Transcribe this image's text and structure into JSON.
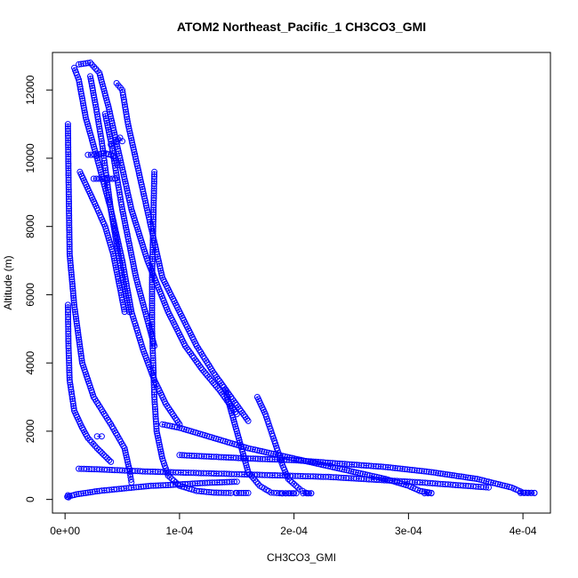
{
  "chart_data": {
    "type": "scatter",
    "title": "ATOM2 Northeast_Pacific_1 CH3CO3_GMI",
    "xlabel": "CH3CO3_GMI",
    "ylabel": "Altitude (m)",
    "xlim": [
      -1.1e-05,
      0.000424
    ],
    "ylim": [
      -400,
      13100
    ],
    "x_ticks": [
      0,
      0.0001,
      0.0002,
      0.0003,
      0.0004
    ],
    "x_tick_labels": [
      "0e+00",
      "1e-04",
      "2e-04",
      "3e-04",
      "4e-04"
    ],
    "y_ticks": [
      0,
      2000,
      4000,
      6000,
      8000,
      10000,
      12000
    ],
    "y_tick_labels": [
      "0",
      "2000",
      "4000",
      "6000",
      "8000",
      "10000",
      "12000"
    ],
    "marker": "open-circle",
    "connected": true,
    "line_style": "dashed",
    "colors": {
      "series": "#0000ff",
      "axes": "#000000",
      "background": "#ffffff"
    },
    "series": [
      {
        "x": [
          2.5e-06,
          3e-06,
          4e-06,
          8e-06,
          1.5e-05,
          2.5e-05,
          4e-05,
          5.2e-05,
          5.6e-05,
          5.8e-05
        ],
        "y": [
          11000,
          9500,
          7200,
          5700,
          4000,
          3000,
          2200,
          1500,
          900,
          500
        ]
      },
      {
        "x": [
          2.5e-06,
          3e-06,
          4e-06,
          8e-06,
          1.5e-05,
          2e-05,
          2.8e-05,
          3.4e-05,
          4e-05
        ],
        "y": [
          5700,
          4500,
          3500,
          2600,
          2100,
          1800,
          1500,
          1300,
          1100
        ]
      },
      {
        "x": [
          8e-06,
          1.2e-05,
          1.8e-05,
          2.8e-05,
          4e-05,
          5e-05,
          5.8e-05,
          6.8e-05,
          7.8e-05,
          8.8e-05,
          0.0001
        ],
        "y": [
          12650,
          12300,
          11200,
          10000,
          8500,
          7000,
          5500,
          4400,
          3500,
          2800,
          2200
        ]
      },
      {
        "x": [
          1.2e-05,
          2.2e-05,
          3e-05,
          3.8e-05,
          4.8e-05,
          5.8e-05,
          7.2e-05,
          9e-05,
          0.000105,
          0.00012,
          0.000135,
          0.00015
        ],
        "y": [
          12750,
          12800,
          12500,
          11500,
          10000,
          8500,
          7000,
          5500,
          4500,
          3800,
          3200,
          2500
        ]
      },
      {
        "x": [
          4.5e-05,
          5e-05,
          5.5e-05,
          6.5e-05,
          7.5e-05,
          8.5e-05,
          0.0001,
          0.000115,
          0.00013,
          0.000145,
          0.00016
        ],
        "y": [
          12200,
          12000,
          11000,
          9500,
          8000,
          6500,
          5500,
          4500,
          3700,
          3000,
          2300
        ]
      },
      {
        "x": [
          2.2e-05,
          2.7e-05,
          3.2e-05,
          3.6e-05,
          4e-05,
          4.5e-05,
          5e-05,
          5.6e-05
        ],
        "y": [
          12400,
          11500,
          10500,
          9500,
          8500,
          7500,
          6500,
          5500
        ]
      },
      {
        "x": [
          3.5e-05,
          4e-05,
          4.5e-05,
          5e-05,
          5.6e-05,
          6.2e-05,
          7e-05,
          7.8e-05
        ],
        "y": [
          11300,
          10500,
          9500,
          8500,
          7500,
          6500,
          5500,
          4500
        ]
      },
      {
        "x": [
          1.3e-05,
          2e-05,
          2.7e-05,
          3.5e-05,
          4.2e-05,
          4.8e-05,
          5.2e-05
        ],
        "y": [
          9600,
          9100,
          8600,
          8000,
          7200,
          6200,
          5500
        ]
      },
      {
        "x": [
          2e-05,
          2.8e-05,
          3.4e-05,
          4e-05,
          4.4e-05,
          4.6e-05
        ],
        "y": [
          10100,
          10100,
          10150,
          10100,
          10000,
          9800
        ]
      },
      {
        "x": [
          2.5e-05,
          3.2e-05,
          3.9e-05,
          4.4e-05
        ],
        "y": [
          9400,
          9400,
          9400,
          9400
        ]
      },
      {
        "x": [
          4e-05,
          4.5e-05,
          4.8e-05,
          5e-05
        ],
        "y": [
          10400,
          10500,
          10600,
          10500
        ]
      },
      {
        "x": [
          7.8e-05,
          7.7e-05,
          7.6e-05,
          7.6e-05,
          7.7e-05,
          7.8e-05,
          8e-05,
          8.5e-05,
          9e-05,
          0.0001,
          0.000115,
          0.00013,
          0.000145
        ],
        "y": [
          9600,
          8000,
          6500,
          5000,
          4000,
          3000,
          2000,
          1200,
          700,
          400,
          250,
          200,
          190
        ]
      },
      {
        "x": [
          0.00014,
          0.000145,
          0.00015,
          0.000155,
          0.00016,
          0.00017,
          0.00018,
          0.00019,
          0.0002
        ],
        "y": [
          3200,
          2600,
          2000,
          1400,
          800,
          400,
          200,
          180,
          180
        ]
      },
      {
        "x": [
          0.000168,
          0.000175,
          0.00018,
          0.000185,
          0.00019,
          0.000195,
          0.000205,
          0.00021,
          0.000212,
          0.000215
        ],
        "y": [
          3000,
          2500,
          2000,
          1500,
          1000,
          600,
          300,
          200,
          180,
          180
        ]
      },
      {
        "x": [
          8.5e-05,
          0.0001,
          0.00012,
          0.00014,
          0.00016,
          0.00018,
          0.0002,
          0.00022,
          0.00024,
          0.00026,
          0.00028,
          0.0003,
          0.00031,
          0.00032
        ],
        "y": [
          2200,
          2100,
          1900,
          1700,
          1500,
          1350,
          1200,
          1050,
          900,
          750,
          600,
          400,
          250,
          190
        ]
      },
      {
        "x": [
          0.0001,
          0.00013,
          0.00016,
          0.0002,
          0.00024,
          0.00028,
          0.00032,
          0.00036,
          0.00039,
          0.0004,
          0.00041
        ],
        "y": [
          1300,
          1250,
          1200,
          1150,
          1050,
          950,
          800,
          600,
          350,
          200,
          190
        ]
      },
      {
        "x": [
          1.2e-05,
          3e-05,
          5e-05,
          7e-05,
          9e-05,
          0.00011,
          0.00013,
          0.00015,
          0.00017,
          0.00019,
          0.00021,
          0.00023,
          0.00025,
          0.00027,
          0.00029,
          0.00031,
          0.00033,
          0.00035,
          0.00037
        ],
        "y": [
          900,
          880,
          850,
          820,
          800,
          780,
          760,
          740,
          720,
          700,
          680,
          660,
          620,
          580,
          540,
          500,
          450,
          400,
          350
        ]
      },
      {
        "x": [
          2e-06,
          1e-05,
          2e-05,
          3e-05,
          4.5e-05,
          6e-05,
          7.5e-05,
          9e-05,
          0.000105,
          0.00012,
          0.000135,
          0.00015
        ],
        "y": [
          80,
          150,
          200,
          250,
          300,
          350,
          400,
          420,
          450,
          480,
          500,
          520
        ]
      },
      {
        "x": [
          2.5e-06,
          3e-06
        ],
        "y": [
          120,
          60
        ]
      },
      {
        "x": [
          2.8e-05,
          3.2e-05
        ],
        "y": [
          1850,
          1850
        ]
      },
      {
        "x": [
          0.000149,
          0.00015,
          0.000152,
          0.000154,
          0.000156,
          0.000158,
          0.00016
        ],
        "y": [
          190,
          190,
          190,
          190,
          190,
          190,
          190
        ]
      },
      {
        "x": [
          0.000189,
          0.00019,
          0.000193,
          0.000196,
          0.000199,
          0.000202
        ],
        "y": [
          180,
          180,
          180,
          180,
          180,
          180
        ]
      },
      {
        "x": [
          0.000208,
          0.000211,
          0.000213,
          0.000215
        ],
        "y": [
          180,
          180,
          180,
          180
        ]
      },
      {
        "x": [
          0.000314,
          0.000317,
          0.00032
        ],
        "y": [
          180,
          180,
          180
        ]
      },
      {
        "x": [
          0.000398,
          0.000401,
          0.000404,
          0.000407,
          0.00041
        ],
        "y": [
          190,
          190,
          190,
          190,
          190
        ]
      }
    ]
  }
}
